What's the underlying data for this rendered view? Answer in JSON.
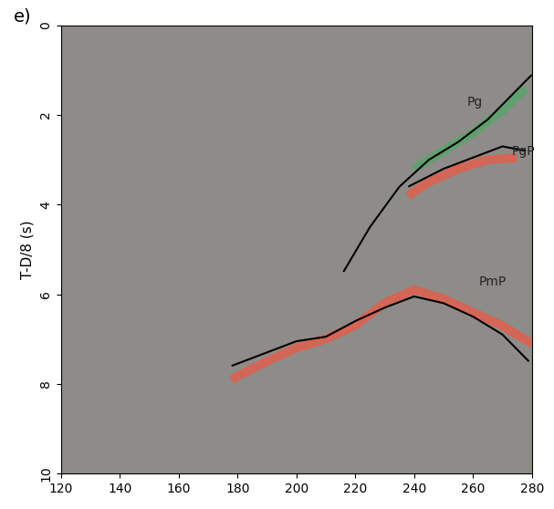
{
  "chart_data": {
    "type": "line",
    "title": "e)",
    "y_label": "T-D/8 (s)",
    "xlim": [
      120,
      280
    ],
    "xticks": [
      120,
      140,
      160,
      180,
      200,
      220,
      240,
      260,
      280
    ],
    "ylim": [
      10,
      0
    ],
    "yticks": [
      0,
      2,
      4,
      6,
      8,
      10
    ],
    "grid": false,
    "series": [
      {
        "color": "#5aa46a",
        "line_style": "solid",
        "x": [
          240,
          250,
          260,
          270,
          278
        ],
        "values": [
          3.2,
          2.8,
          2.4,
          1.9,
          1.4
        ]
      },
      {
        "color": "#000000",
        "line_style": "solid",
        "x": [
          216,
          225,
          235,
          245,
          255,
          265,
          280
        ],
        "values": [
          5.5,
          4.5,
          3.6,
          3.0,
          2.6,
          2.1,
          1.1
        ]
      },
      {
        "color": "#e0604e",
        "line_style": "solid",
        "x": [
          238,
          245,
          255,
          265,
          275
        ],
        "values": [
          3.8,
          3.5,
          3.2,
          3.0,
          2.95
        ]
      },
      {
        "color": "#000000",
        "line_style": "solid",
        "x": [
          238,
          250,
          260,
          270,
          278
        ],
        "values": [
          3.6,
          3.2,
          2.95,
          2.7,
          2.8
        ]
      },
      {
        "color": "#e0604e",
        "line_style": "solid",
        "x": [
          178,
          190,
          200,
          210,
          220,
          230,
          240,
          250,
          260,
          270,
          280
        ],
        "values": [
          7.9,
          7.5,
          7.2,
          7.0,
          6.7,
          6.2,
          5.9,
          6.1,
          6.4,
          6.7,
          7.1
        ]
      },
      {
        "color": "#000000",
        "line_style": "solid",
        "x": [
          178,
          190,
          200,
          210,
          220,
          230,
          240,
          250,
          260,
          270,
          279
        ],
        "values": [
          7.6,
          7.3,
          7.05,
          6.95,
          6.6,
          6.3,
          6.05,
          6.2,
          6.5,
          6.9,
          7.5
        ]
      }
    ],
    "annotations": [
      {
        "text": "Pg",
        "x": 258,
        "y": 1.8
      },
      {
        "text": "PgP",
        "x": 273,
        "y": 2.9
      },
      {
        "text": "PmP",
        "x": 262,
        "y": 5.8
      }
    ]
  }
}
